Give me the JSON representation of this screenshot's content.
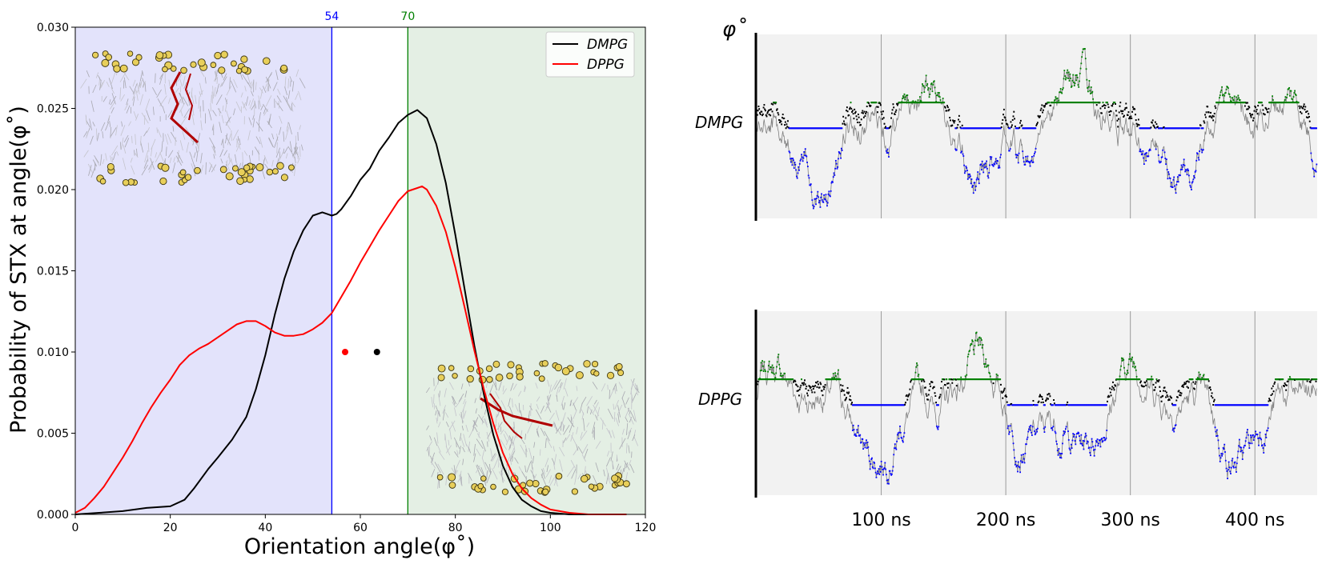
{
  "chart_data": [
    {
      "type": "line",
      "xlabel": "Orientation angle(φ˚)",
      "ylabel": "Probability of STX at angle(φ˚)",
      "xlim": [
        0,
        120
      ],
      "ylim": [
        0,
        0.03
      ],
      "xticks": [
        "0",
        "20",
        "40",
        "60",
        "80",
        "100",
        "120"
      ],
      "yticks": [
        "0.000",
        "0.005",
        "0.010",
        "0.015",
        "0.020",
        "0.025",
        "0.030"
      ],
      "legend_position": "top-right",
      "regions": [
        {
          "from": 0,
          "to": 54,
          "color": "#e3e3fb"
        },
        {
          "from": 70,
          "to": 120,
          "color": "#e4efe4"
        }
      ],
      "vlines": [
        {
          "x": 54,
          "label": "54",
          "color": "#0000ff"
        },
        {
          "x": 70,
          "label": "70",
          "color": "#008000"
        }
      ],
      "series": [
        {
          "name": "DMPG",
          "color": "#000000",
          "x": [
            0,
            5,
            10,
            15,
            20,
            23,
            25,
            28,
            30,
            33,
            36,
            38,
            40,
            42,
            44,
            46,
            48,
            50,
            52,
            53,
            54,
            55,
            56,
            58,
            60,
            62,
            64,
            66,
            68,
            70,
            72,
            74,
            76,
            78,
            80,
            82,
            84,
            86,
            88,
            90,
            92,
            94,
            96,
            98,
            100,
            104,
            108,
            112,
            116
          ],
          "y": [
            0.0,
            0.0001,
            0.0002,
            0.0004,
            0.0005,
            0.0009,
            0.0016,
            0.0028,
            0.0035,
            0.0046,
            0.006,
            0.0077,
            0.0098,
            0.0123,
            0.0145,
            0.0162,
            0.0175,
            0.0184,
            0.0186,
            0.0185,
            0.0184,
            0.0185,
            0.0188,
            0.0196,
            0.0206,
            0.0213,
            0.0224,
            0.0232,
            0.0241,
            0.0246,
            0.0249,
            0.0244,
            0.0228,
            0.0204,
            0.0172,
            0.0138,
            0.0104,
            0.0074,
            0.0049,
            0.003,
            0.0017,
            0.0009,
            0.0005,
            0.0002,
            0.0001,
            0.0,
            0.0,
            0.0,
            0.0
          ]
        },
        {
          "name": "DPPG",
          "color": "#ff0000",
          "x": [
            0,
            2,
            4,
            6,
            8,
            10,
            12,
            14,
            16,
            18,
            20,
            22,
            24,
            26,
            28,
            30,
            32,
            34,
            36,
            38,
            40,
            42,
            44,
            46,
            48,
            50,
            52,
            54,
            56,
            58,
            60,
            62,
            64,
            66,
            68,
            70,
            72,
            73,
            74,
            76,
            78,
            80,
            82,
            84,
            86,
            88,
            90,
            92,
            94,
            96,
            98,
            100,
            104,
            108,
            112,
            116
          ],
          "y": [
            0.0001,
            0.0004,
            0.001,
            0.0017,
            0.0026,
            0.0035,
            0.0045,
            0.0056,
            0.0066,
            0.0075,
            0.0083,
            0.0092,
            0.0098,
            0.0102,
            0.0105,
            0.0109,
            0.0113,
            0.0117,
            0.0119,
            0.0119,
            0.0116,
            0.0112,
            0.011,
            0.011,
            0.0111,
            0.0114,
            0.0118,
            0.0124,
            0.0134,
            0.0144,
            0.0155,
            0.0165,
            0.0175,
            0.0184,
            0.0193,
            0.0199,
            0.0201,
            0.0202,
            0.02,
            0.019,
            0.0174,
            0.0152,
            0.0127,
            0.0101,
            0.0077,
            0.0056,
            0.0038,
            0.0025,
            0.0016,
            0.001,
            0.0006,
            0.0003,
            0.0001,
            0.0,
            0.0,
            0.0
          ]
        }
      ],
      "markers": [
        {
          "x": 56.8,
          "y": 0.01,
          "color": "#ff0000"
        },
        {
          "x": 63.5,
          "y": 0.01,
          "color": "#000000"
        }
      ]
    },
    {
      "type": "scatter",
      "ylabel": "φ˚",
      "xticks": [
        "100 ns",
        "200 ns",
        "300 ns",
        "400 ns"
      ],
      "xtick_values": [
        100,
        200,
        300,
        400
      ],
      "xlim": [
        0,
        450
      ],
      "thresholds": {
        "low": 54,
        "high": 70
      },
      "colors": {
        "above": "#008000",
        "between": "#000000",
        "below": "#0000ff",
        "trace": "#808080"
      },
      "panels": [
        {
          "name": "DMPG"
        },
        {
          "name": "DPPG"
        }
      ]
    }
  ]
}
